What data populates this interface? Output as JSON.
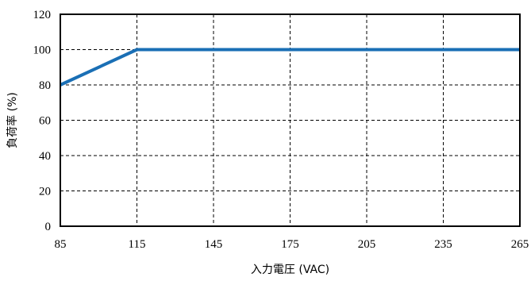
{
  "chart_data": {
    "type": "line",
    "xlabel": "入力電圧 (VAC)",
    "ylabel": "負荷率 (%)",
    "xlim": [
      85,
      265
    ],
    "ylim": [
      0,
      120
    ],
    "xticks": [
      85,
      115,
      145,
      175,
      205,
      235,
      265
    ],
    "yticks": [
      0,
      20,
      40,
      60,
      80,
      100,
      120
    ],
    "grid": true,
    "series": [
      {
        "x": [
          85,
          115,
          265
        ],
        "y": [
          80,
          100,
          100
        ],
        "color": "#1a6fb5"
      }
    ]
  }
}
